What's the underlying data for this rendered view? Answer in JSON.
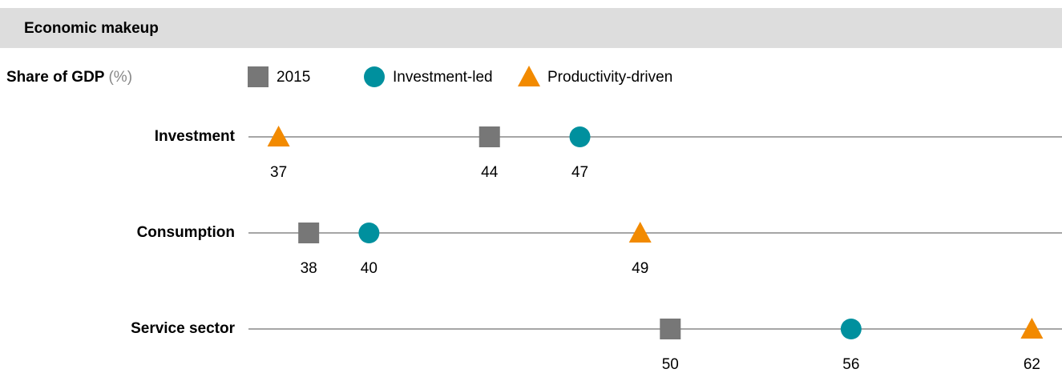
{
  "chart_data": {
    "type": "dot",
    "title": "Economic makeup",
    "y_label": "Share of GDP",
    "unit_label": "(%)",
    "categories": [
      "Investment",
      "Consumption",
      "Service sector"
    ],
    "xlim": [
      36,
      63
    ],
    "series": [
      {
        "name": "2015",
        "color": "#777777",
        "marker": "square",
        "values": [
          44,
          38,
          50
        ]
      },
      {
        "name": "Investment-led",
        "color": "#00909e",
        "marker": "circle",
        "values": [
          47,
          40,
          56
        ]
      },
      {
        "name": "Productivity-driven",
        "color": "#f28a00",
        "marker": "triangle",
        "values": [
          37,
          49,
          62
        ]
      }
    ]
  }
}
